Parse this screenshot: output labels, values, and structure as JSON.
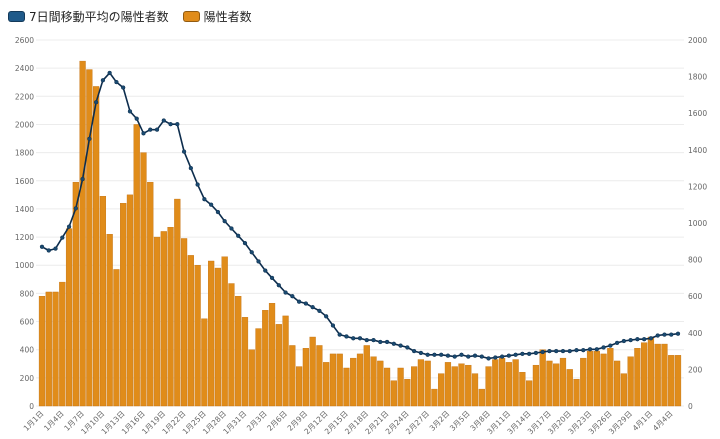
{
  "legend": {
    "items": [
      {
        "label": "7日間移動平均の陽性者数",
        "color": "#1f5a8a"
      },
      {
        "label": "陽性者数",
        "color": "#e08c1a"
      }
    ]
  },
  "colors": {
    "bar": "#e08c1a",
    "bar_edge": "#c27010",
    "line": "#0d2d4d",
    "marker": "#1a4a70",
    "grid": "#ececec",
    "tick_text": "#666666"
  },
  "chart_data": {
    "type": "bar+line",
    "title": "",
    "xlabel": "",
    "ylabel_left": "",
    "ylabel_right": "",
    "left_axis": {
      "min": 0,
      "max": 2600,
      "ticks": [
        0,
        200,
        400,
        600,
        800,
        1000,
        1200,
        1400,
        1600,
        1800,
        2000,
        2200,
        2400,
        2600
      ]
    },
    "right_axis": {
      "min": 0,
      "max": 2000,
      "ticks": [
        0,
        200,
        400,
        600,
        800,
        1000,
        1200,
        1400,
        1600,
        1800,
        2000
      ]
    },
    "x_tick_labels": [
      "1月1日",
      "1月4日",
      "1月7日",
      "1月10日",
      "1月13日",
      "1月16日",
      "1月19日",
      "1月22日",
      "1月25日",
      "1月28日",
      "1月31日",
      "2月3日",
      "2月6日",
      "2月9日",
      "2月12日",
      "2月15日",
      "2月18日",
      "2月21日",
      "2月24日",
      "2月27日",
      "3月2日",
      "3月5日",
      "3月8日",
      "3月11日",
      "3月14日",
      "3月17日",
      "3月20日",
      "3月23日",
      "3月26日",
      "3月29日",
      "4月1日",
      "4月4日"
    ],
    "x_start": "1月1日",
    "x_end": "4月4日",
    "grid": true,
    "legend_position": "top-left",
    "series": [
      {
        "name": "陽性者数",
        "type": "bar",
        "axis": "left",
        "values": [
          780,
          810,
          810,
          880,
          1260,
          1590,
          2450,
          2390,
          2270,
          1490,
          1220,
          970,
          1440,
          1500,
          2000,
          1800,
          1590,
          1200,
          1240,
          1270,
          1470,
          1190,
          1070,
          1000,
          620,
          1030,
          980,
          1060,
          870,
          780,
          630,
          400,
          550,
          680,
          730,
          580,
          640,
          430,
          280,
          410,
          490,
          430,
          310,
          370,
          370,
          270,
          340,
          370,
          430,
          350,
          320,
          270,
          180,
          270,
          190,
          280,
          330,
          320,
          120,
          230,
          310,
          280,
          300,
          290,
          230,
          120,
          280,
          330,
          340,
          310,
          330,
          240,
          180,
          290,
          400,
          320,
          300,
          340,
          260,
          190,
          340,
          390,
          390,
          370,
          410,
          320,
          230,
          350,
          410,
          450,
          490,
          440,
          440,
          360,
          360
        ],
        "note": "95 daily bars 1月1日–4月4日, values estimated from pixel heights"
      },
      {
        "name": "7日間移動平均の陽性者数",
        "type": "line",
        "axis": "right",
        "values": [
          870,
          850,
          860,
          920,
          980,
          1080,
          1240,
          1460,
          1660,
          1780,
          1820,
          1770,
          1740,
          1610,
          1570,
          1490,
          1510,
          1510,
          1560,
          1540,
          1540,
          1390,
          1300,
          1210,
          1130,
          1100,
          1060,
          1010,
          970,
          930,
          890,
          840,
          790,
          740,
          700,
          660,
          620,
          600,
          570,
          560,
          540,
          520,
          490,
          440,
          390,
          380,
          370,
          370,
          360,
          360,
          350,
          350,
          340,
          330,
          320,
          300,
          290,
          280,
          280,
          280,
          275,
          270,
          280,
          270,
          275,
          270,
          260,
          265,
          270,
          275,
          280,
          285,
          285,
          290,
          295,
          300,
          300,
          300,
          300,
          305,
          305,
          310,
          310,
          320,
          330,
          345,
          355,
          360,
          365,
          365,
          370,
          385,
          390,
          390,
          395
        ]
      }
    ]
  }
}
